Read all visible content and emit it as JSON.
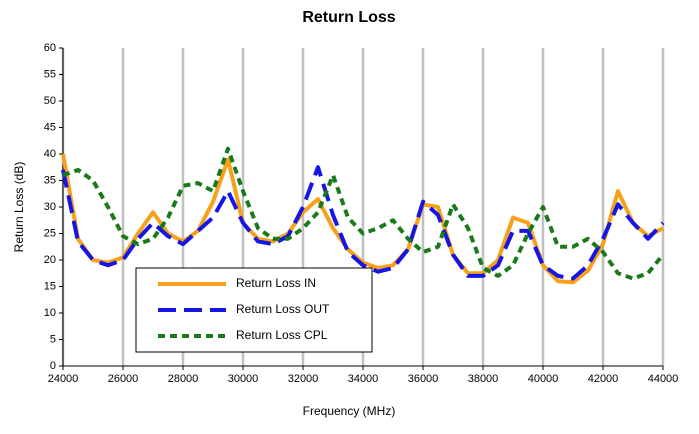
{
  "chart_data": {
    "type": "line",
    "title": "Return Loss",
    "x_label": "Frequency (MHz)",
    "y_label": "Return Loss (dB)",
    "x": [
      24000,
      24500,
      25000,
      25500,
      26000,
      26500,
      27000,
      27500,
      28000,
      28500,
      29000,
      29500,
      30000,
      30500,
      31000,
      31500,
      32000,
      32500,
      33000,
      33500,
      34000,
      34500,
      35000,
      35500,
      36000,
      36500,
      37000,
      37500,
      38000,
      38500,
      39000,
      39500,
      40000,
      40500,
      41000,
      41500,
      42000,
      42500,
      43000,
      43500,
      44000
    ],
    "series": [
      {
        "name": "Return Loss IN",
        "color": "#f7a11a",
        "style": "solid",
        "values": [
          40,
          24,
          20,
          19.5,
          20.5,
          25,
          29,
          25,
          23.5,
          25.5,
          31,
          39,
          27,
          24,
          23.5,
          25,
          29,
          31.5,
          26,
          22,
          19.5,
          18.5,
          19,
          22,
          30.5,
          30,
          21,
          17.5,
          17.5,
          20,
          28,
          27,
          19,
          16,
          15.8,
          18,
          23,
          33,
          27,
          24.5,
          26
        ]
      },
      {
        "name": "Return Loss OUT",
        "color": "#1515e6",
        "style": "long-dash",
        "values": [
          37,
          23.5,
          20,
          19,
          20,
          24,
          27,
          24.5,
          23,
          25.5,
          28,
          33,
          27,
          23.5,
          23,
          24.5,
          30,
          37.5,
          28.5,
          21.5,
          19,
          17.8,
          18.5,
          22,
          31,
          28.5,
          21,
          17,
          17,
          19,
          25.5,
          25.5,
          19,
          17,
          16.5,
          19,
          24,
          30.5,
          27,
          24,
          27
        ]
      },
      {
        "name": "Return Loss CPL",
        "color": "#1a7a1a",
        "style": "short-dash",
        "values": [
          36,
          37,
          35,
          30,
          24.5,
          23,
          24,
          28,
          34,
          34.5,
          33,
          41,
          33,
          26,
          24,
          24,
          26,
          29,
          36,
          28,
          25,
          26,
          27.5,
          24,
          21.5,
          22.5,
          30.5,
          26,
          18.5,
          17,
          19,
          25,
          30,
          22.5,
          22.5,
          24,
          21.5,
          17.5,
          16.5,
          17.5,
          21
        ]
      }
    ],
    "xlim": [
      24000,
      44000
    ],
    "xticks": [
      24000,
      26000,
      28000,
      30000,
      32000,
      34000,
      36000,
      38000,
      40000,
      42000,
      44000
    ],
    "ylim": [
      0,
      60
    ],
    "yticks": [
      0,
      5,
      10,
      15,
      20,
      25,
      30,
      35,
      40,
      45,
      50,
      55,
      60
    ],
    "grid": "x",
    "legend": "lower-left"
  }
}
